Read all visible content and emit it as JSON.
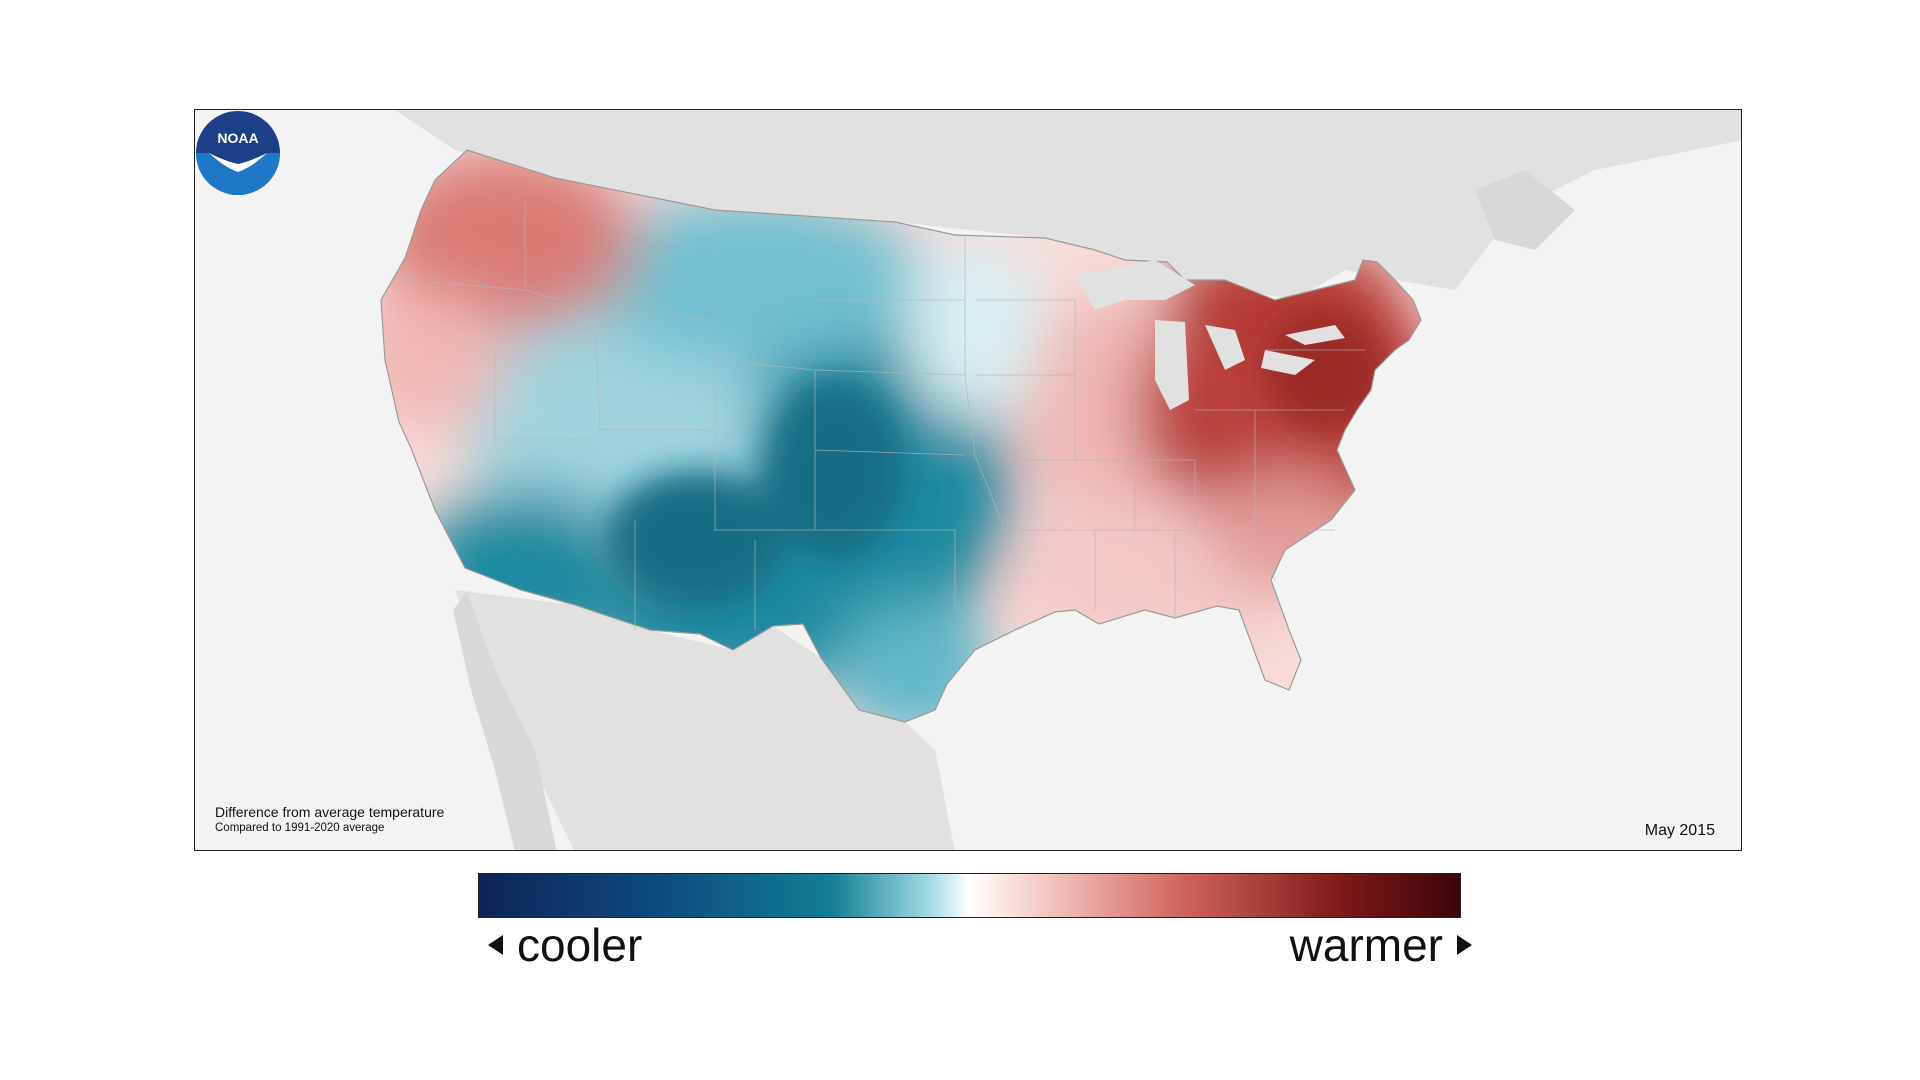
{
  "map": {
    "caption_title": "Difference from average temperature",
    "caption_subtitle": "Compared to 1991-2020 average",
    "date": "May 2015",
    "logo_text": "NOAA",
    "regions": {
      "west_coast_northwest": "warmer",
      "southwest_plains_rockies": "cooler",
      "midwest_southeast": "slightly warmer",
      "northeast_great_lakes": "much warmer"
    }
  },
  "legend": {
    "left_label": "cooler",
    "right_label": "warmer",
    "colors": [
      "#0f2357",
      "#0d4a7c",
      "#137f96",
      "#a3dbe4",
      "#ffffff",
      "#f3c5c0",
      "#cf625c",
      "#7d1919",
      "#3b0408"
    ]
  },
  "icons": [
    "arrow-left-icon",
    "arrow-right-icon",
    "noaa-logo-icon"
  ]
}
